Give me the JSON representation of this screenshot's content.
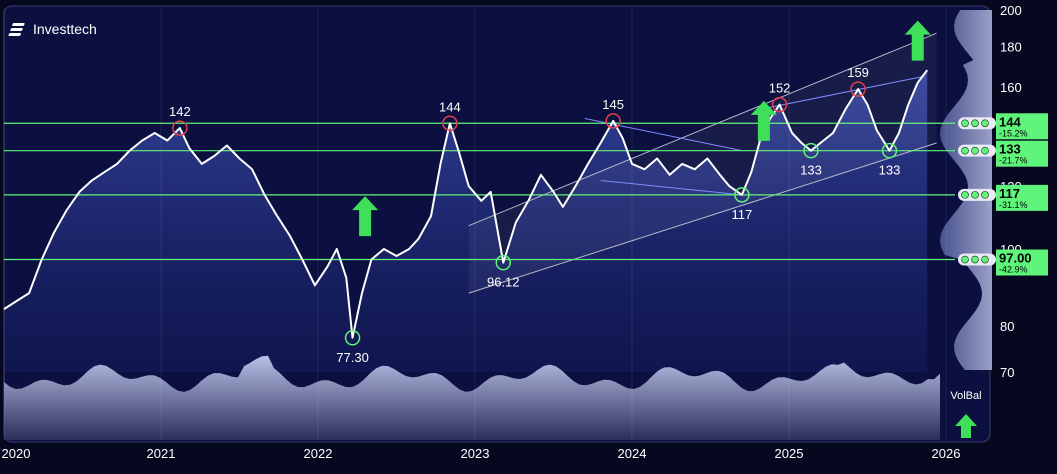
{
  "brand": {
    "name": "Investtech",
    "icon": "investtech-logo-icon"
  },
  "colors": {
    "background": "#06081f",
    "panel": "#0b1040",
    "price_line": "#ffffff",
    "support_line": "#5ef57a",
    "trend_channel": "#b8b8c8",
    "trend_blue": "#7f8cff",
    "peak_marker": "#e0424a",
    "trough_marker": "#5ef57a",
    "arrow": "#3ee05a"
  },
  "chart_data": {
    "type": "line",
    "x_axis": {
      "ticks": [
        "2020",
        "2021",
        "2022",
        "2023",
        "2024",
        "2025",
        "2026"
      ]
    },
    "y_axis": {
      "scale": "log",
      "ylim": [
        70,
        200
      ],
      "ticks": [
        70,
        80,
        100,
        120,
        140,
        160,
        180,
        200
      ]
    },
    "series": [
      {
        "values": [
          [
            2020.0,
            84
          ],
          [
            2020.08,
            86
          ],
          [
            2020.16,
            88
          ],
          [
            2020.24,
            97
          ],
          [
            2020.32,
            105
          ],
          [
            2020.4,
            112
          ],
          [
            2020.48,
            118
          ],
          [
            2020.56,
            122
          ],
          [
            2020.64,
            125
          ],
          [
            2020.72,
            128
          ],
          [
            2020.8,
            133
          ],
          [
            2020.88,
            137
          ],
          [
            2020.96,
            140
          ],
          [
            2021.04,
            137
          ],
          [
            2021.12,
            142
          ],
          [
            2021.18,
            134
          ],
          [
            2021.26,
            128
          ],
          [
            2021.34,
            131
          ],
          [
            2021.42,
            135
          ],
          [
            2021.5,
            130
          ],
          [
            2021.58,
            126
          ],
          [
            2021.66,
            117
          ],
          [
            2021.74,
            110
          ],
          [
            2021.82,
            104
          ],
          [
            2021.9,
            97
          ],
          [
            2021.98,
            90
          ],
          [
            2022.06,
            95
          ],
          [
            2022.12,
            100
          ],
          [
            2022.18,
            92
          ],
          [
            2022.22,
            77.3
          ],
          [
            2022.28,
            88
          ],
          [
            2022.34,
            97
          ],
          [
            2022.42,
            100
          ],
          [
            2022.5,
            98
          ],
          [
            2022.58,
            100
          ],
          [
            2022.64,
            103
          ],
          [
            2022.72,
            110
          ],
          [
            2022.78,
            128
          ],
          [
            2022.84,
            144
          ],
          [
            2022.9,
            132
          ],
          [
            2022.96,
            120
          ],
          [
            2023.04,
            115
          ],
          [
            2023.1,
            118
          ],
          [
            2023.18,
            96.12
          ],
          [
            2023.26,
            108
          ],
          [
            2023.34,
            115
          ],
          [
            2023.42,
            124
          ],
          [
            2023.5,
            118
          ],
          [
            2023.56,
            113
          ],
          [
            2023.64,
            120
          ],
          [
            2023.72,
            128
          ],
          [
            2023.8,
            136
          ],
          [
            2023.88,
            145
          ],
          [
            2023.94,
            138
          ],
          [
            2024.0,
            128
          ],
          [
            2024.08,
            126
          ],
          [
            2024.16,
            130
          ],
          [
            2024.24,
            124
          ],
          [
            2024.32,
            128
          ],
          [
            2024.4,
            126
          ],
          [
            2024.48,
            130
          ],
          [
            2024.56,
            124
          ],
          [
            2024.62,
            120
          ],
          [
            2024.7,
            117
          ],
          [
            2024.76,
            125
          ],
          [
            2024.82,
            138
          ],
          [
            2024.88,
            146
          ],
          [
            2024.94,
            152
          ],
          [
            2025.02,
            140
          ],
          [
            2025.08,
            136
          ],
          [
            2025.14,
            133
          ],
          [
            2025.2,
            136
          ],
          [
            2025.28,
            140
          ],
          [
            2025.36,
            150
          ],
          [
            2025.44,
            159
          ],
          [
            2025.5,
            152
          ],
          [
            2025.56,
            141
          ],
          [
            2025.64,
            133
          ],
          [
            2025.7,
            140
          ],
          [
            2025.76,
            152
          ],
          [
            2025.82,
            162
          ],
          [
            2025.88,
            168
          ]
        ]
      }
    ],
    "support_levels": [
      {
        "value": 144,
        "label": "144",
        "pct": "-15.2%"
      },
      {
        "value": 133,
        "label": "133",
        "pct": "-21.7%"
      },
      {
        "value": 117,
        "label": "117",
        "pct": "-31.1%"
      },
      {
        "value": 97.0,
        "label": "97.00",
        "pct": "-42.9%"
      }
    ],
    "peaks": [
      {
        "x": 2021.12,
        "y": 142,
        "label": "142"
      },
      {
        "x": 2022.84,
        "y": 144,
        "label": "144"
      },
      {
        "x": 2023.88,
        "y": 145,
        "label": "145"
      },
      {
        "x": 2024.94,
        "y": 152,
        "label": "152"
      },
      {
        "x": 2025.44,
        "y": 159,
        "label": "159"
      }
    ],
    "troughs": [
      {
        "x": 2022.22,
        "y": 77.3,
        "label": "77.30"
      },
      {
        "x": 2023.18,
        "y": 96.12,
        "label": "96.12"
      },
      {
        "x": 2024.7,
        "y": 117,
        "label": "117"
      },
      {
        "x": 2025.14,
        "y": 133,
        "label": "133"
      },
      {
        "x": 2025.64,
        "y": 133,
        "label": "133"
      }
    ],
    "signal_arrows": [
      {
        "x": 2022.3,
        "y": 110,
        "direction": "up"
      },
      {
        "x": 2024.84,
        "y": 145,
        "direction": "up"
      },
      {
        "x": 2025.82,
        "y": 183,
        "direction": "up"
      }
    ],
    "volume_balance": {
      "label": "VolBal",
      "direction": "up"
    }
  }
}
